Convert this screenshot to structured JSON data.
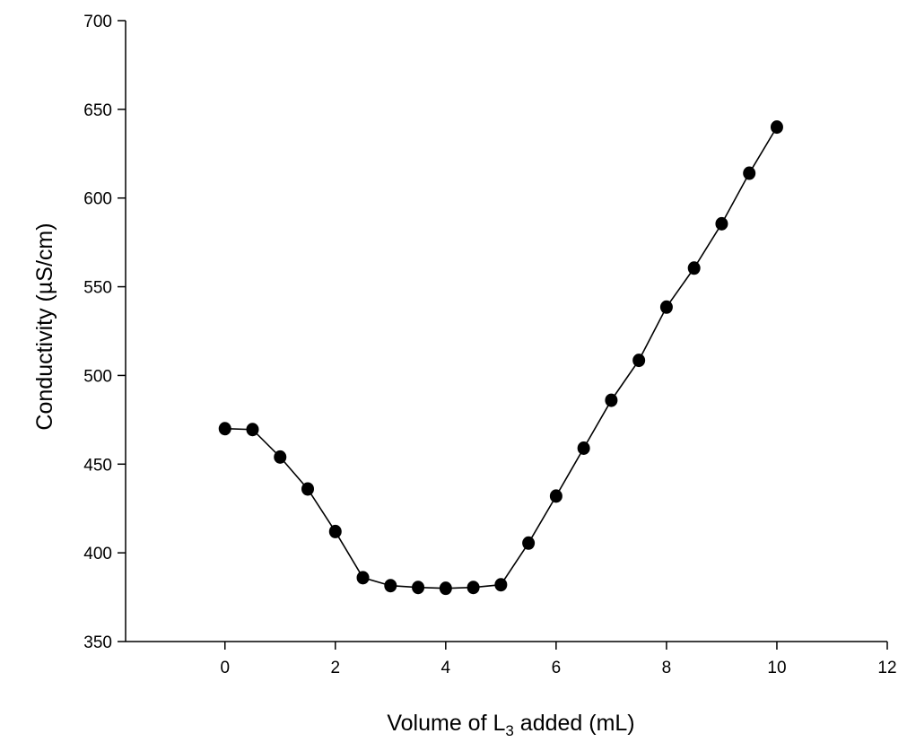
{
  "chart_data": {
    "type": "line",
    "xlabel": "Volume of L3 added (mL)",
    "xlabel_parts": {
      "pre": "Volume of L",
      "sub": "3",
      "post": " added (mL)"
    },
    "ylabel": "Conductivity (µS/cm)",
    "xlim": [
      -1.8,
      12
    ],
    "ylim": [
      350,
      700
    ],
    "xticks": [
      0,
      2,
      4,
      6,
      8,
      10,
      12
    ],
    "yticks": [
      350,
      400,
      450,
      500,
      550,
      600,
      650,
      700
    ],
    "grid": false,
    "series": [
      {
        "x": [
          0,
          0.5,
          1,
          1.5,
          2,
          2.5,
          3,
          3.5,
          4,
          4.5,
          5,
          5.5,
          6,
          6.5,
          7,
          7.5,
          8,
          8.5,
          9,
          9.5,
          10
        ],
        "y": [
          470,
          469.5,
          454,
          436,
          412,
          386,
          381.5,
          380.5,
          380,
          380.5,
          382,
          405.5,
          432,
          459,
          486,
          508.5,
          538.5,
          560.5,
          585.5,
          614,
          640
        ]
      }
    ],
    "colors": {
      "line": "#000000",
      "marker": "#000000",
      "axis": "#000000"
    }
  }
}
